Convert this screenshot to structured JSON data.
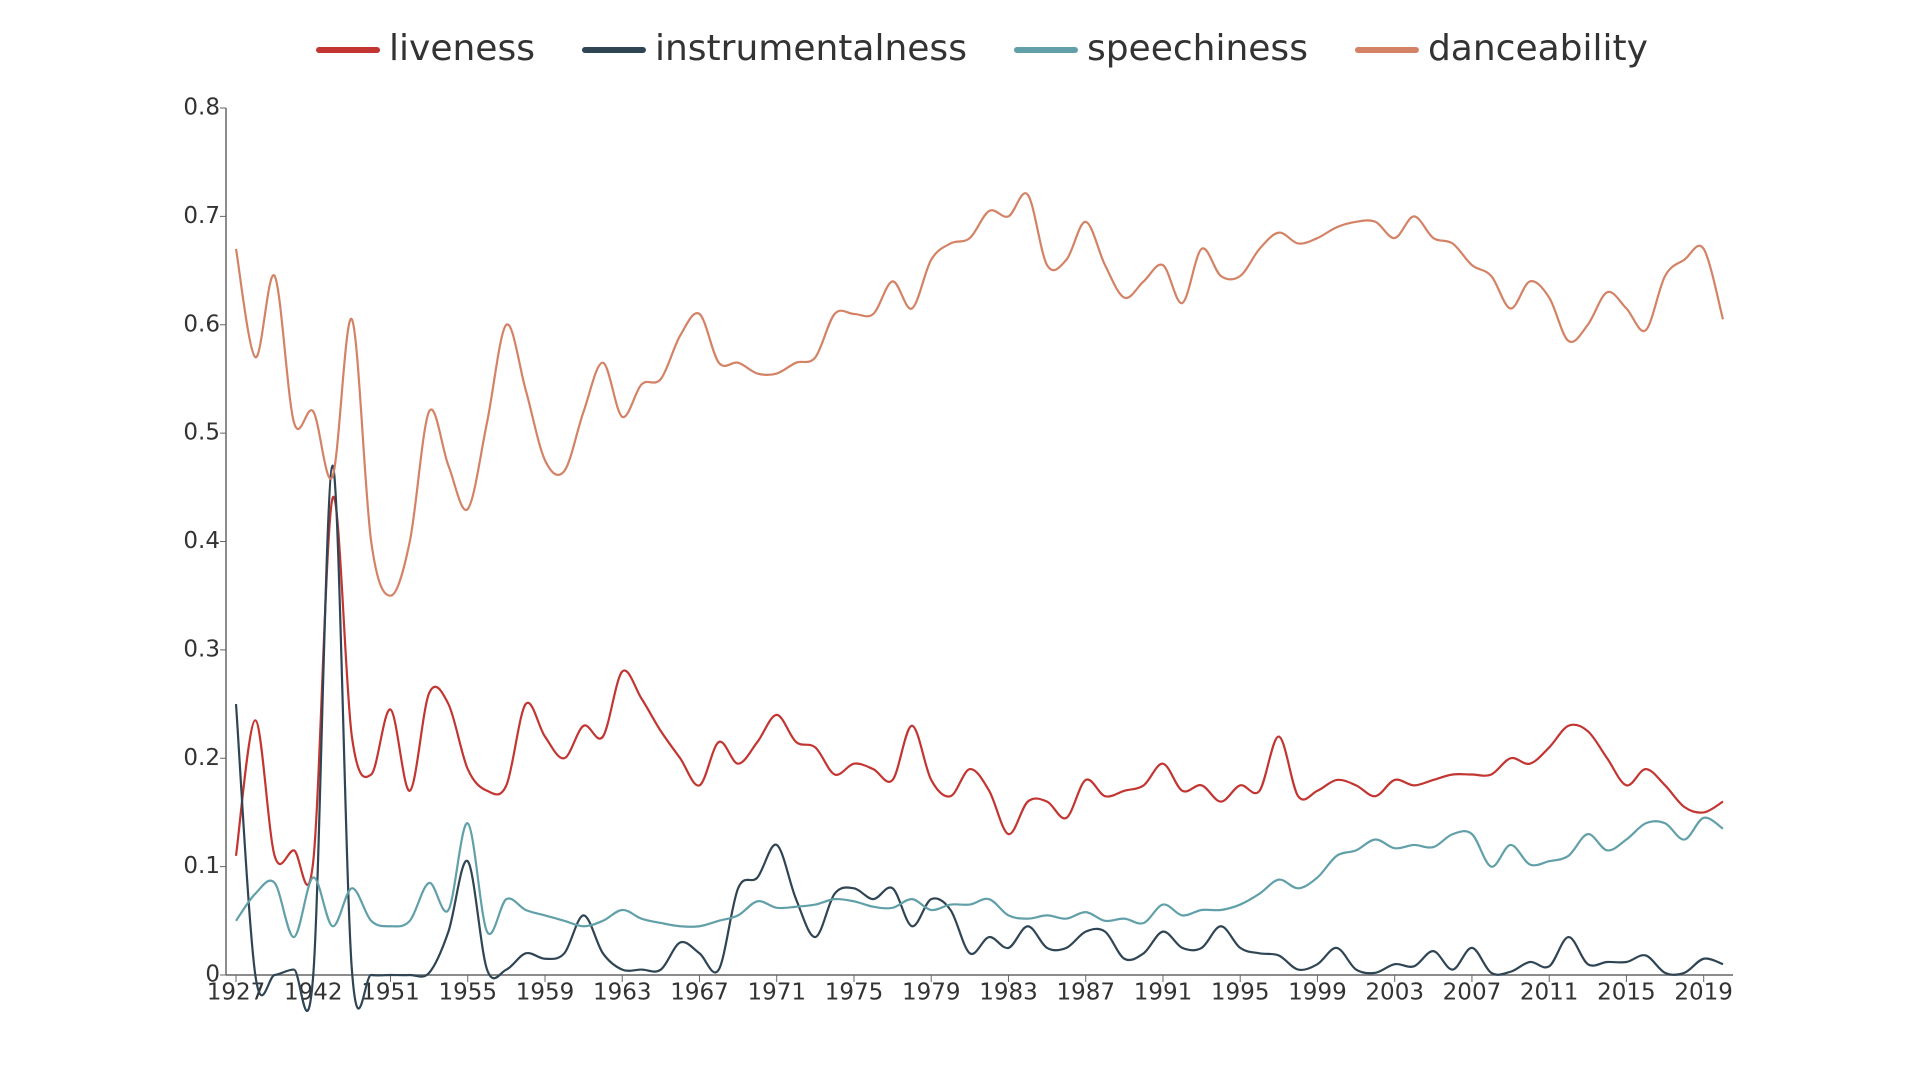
{
  "chart_data": {
    "type": "line",
    "smooth": true,
    "legend": "top",
    "grid": false,
    "categories": [
      "1927",
      null,
      null,
      null,
      "1942",
      null,
      null,
      null,
      "1951",
      null,
      null,
      null,
      "1955",
      null,
      null,
      null,
      "1959",
      null,
      null,
      null,
      "1963",
      null,
      null,
      null,
      "1967",
      null,
      null,
      null,
      "1971",
      null,
      null,
      null,
      "1975",
      null,
      null,
      null,
      "1979",
      null,
      null,
      null,
      "1983",
      null,
      null,
      null,
      "1987",
      null,
      null,
      null,
      "1991",
      null,
      null,
      null,
      "1995",
      null,
      null,
      null,
      "1999",
      null,
      null,
      null,
      "2003",
      null,
      null,
      null,
      "2007",
      null,
      null,
      null,
      "2011",
      null,
      null,
      null,
      "2015",
      null,
      null,
      null,
      "2019",
      null
    ],
    "ylim": [
      0,
      0.8
    ],
    "yticks": [
      0,
      0.1,
      0.2,
      0.3,
      0.4,
      0.5,
      0.6,
      0.7,
      0.8
    ],
    "series": [
      {
        "name": "liveness",
        "color": "#c23531",
        "values": [
          0.11,
          0.235,
          0.11,
          0.115,
          0.105,
          0.44,
          0.22,
          0.185,
          0.245,
          0.17,
          0.26,
          0.25,
          0.19,
          0.17,
          0.175,
          0.25,
          0.22,
          0.2,
          0.23,
          0.22,
          0.28,
          0.255,
          0.225,
          0.2,
          0.175,
          0.215,
          0.195,
          0.215,
          0.24,
          0.215,
          0.21,
          0.185,
          0.195,
          0.19,
          0.18,
          0.23,
          0.18,
          0.165,
          0.19,
          0.17,
          0.13,
          0.16,
          0.16,
          0.145,
          0.18,
          0.165,
          0.17,
          0.175,
          0.195,
          0.17,
          0.175,
          0.16,
          0.175,
          0.17,
          0.22,
          0.165,
          0.17,
          0.18,
          0.175,
          0.165,
          0.18,
          0.175,
          0.18,
          0.185,
          0.185,
          0.185,
          0.2,
          0.195,
          0.21,
          0.23,
          0.225,
          0.2,
          0.175,
          0.19,
          0.175,
          0.155,
          0.15,
          0.16
        ]
      },
      {
        "name": "instrumentalness",
        "color": "#2f4554",
        "values": [
          0.25,
          0,
          0,
          0.005,
          0,
          0.47,
          0.005,
          0,
          0,
          0,
          0.002,
          0.04,
          0.105,
          0.005,
          0.005,
          0.02,
          0.015,
          0.02,
          0.055,
          0.02,
          0.005,
          0.005,
          0.005,
          0.03,
          0.02,
          0.005,
          0.08,
          0.09,
          0.12,
          0.07,
          0.035,
          0.075,
          0.08,
          0.07,
          0.08,
          0.045,
          0.07,
          0.06,
          0.02,
          0.035,
          0.025,
          0.045,
          0.025,
          0.025,
          0.04,
          0.04,
          0.015,
          0.02,
          0.04,
          0.025,
          0.025,
          0.045,
          0.025,
          0.02,
          0.018,
          0.005,
          0.01,
          0.025,
          0.005,
          0.002,
          0.01,
          0.008,
          0.022,
          0.005,
          0.025,
          0.002,
          0.003,
          0.012,
          0.008,
          0.035,
          0.01,
          0.012,
          0.012,
          0.018,
          0.002,
          0.002,
          0.015,
          0.01
        ]
      },
      {
        "name": "speechiness",
        "color": "#61a0a8",
        "values": [
          0.05,
          0.075,
          0.085,
          0.035,
          0.09,
          0.045,
          0.08,
          0.05,
          0.045,
          0.05,
          0.085,
          0.06,
          0.14,
          0.04,
          0.07,
          0.06,
          0.055,
          0.05,
          0.045,
          0.05,
          0.06,
          0.052,
          0.048,
          0.045,
          0.045,
          0.05,
          0.055,
          0.068,
          0.062,
          0.063,
          0.065,
          0.07,
          0.068,
          0.063,
          0.062,
          0.07,
          0.06,
          0.065,
          0.065,
          0.07,
          0.055,
          0.052,
          0.055,
          0.052,
          0.058,
          0.05,
          0.052,
          0.048,
          0.065,
          0.055,
          0.06,
          0.06,
          0.065,
          0.075,
          0.088,
          0.08,
          0.09,
          0.11,
          0.115,
          0.125,
          0.117,
          0.12,
          0.118,
          0.13,
          0.13,
          0.1,
          0.12,
          0.102,
          0.105,
          0.11,
          0.13,
          0.115,
          0.125,
          0.14,
          0.14,
          0.125,
          0.145,
          0.135
        ]
      },
      {
        "name": "danceability",
        "color": "#d48265",
        "values": [
          0.67,
          0.57,
          0.645,
          0.51,
          0.52,
          0.46,
          0.605,
          0.4,
          0.35,
          0.4,
          0.52,
          0.47,
          0.43,
          0.51,
          0.6,
          0.54,
          0.475,
          0.465,
          0.52,
          0.565,
          0.515,
          0.545,
          0.55,
          0.59,
          0.61,
          0.565,
          0.565,
          0.555,
          0.555,
          0.565,
          0.57,
          0.61,
          0.61,
          0.61,
          0.64,
          0.615,
          0.66,
          0.675,
          0.68,
          0.705,
          0.7,
          0.72,
          0.655,
          0.66,
          0.695,
          0.655,
          0.625,
          0.64,
          0.655,
          0.62,
          0.67,
          0.645,
          0.645,
          0.67,
          0.685,
          0.675,
          0.68,
          0.69,
          0.695,
          0.695,
          0.68,
          0.7,
          0.68,
          0.675,
          0.655,
          0.645,
          0.615,
          0.64,
          0.625,
          0.585,
          0.6,
          0.63,
          0.615,
          0.595,
          0.645,
          0.66,
          0.67,
          0.605
        ]
      }
    ]
  }
}
